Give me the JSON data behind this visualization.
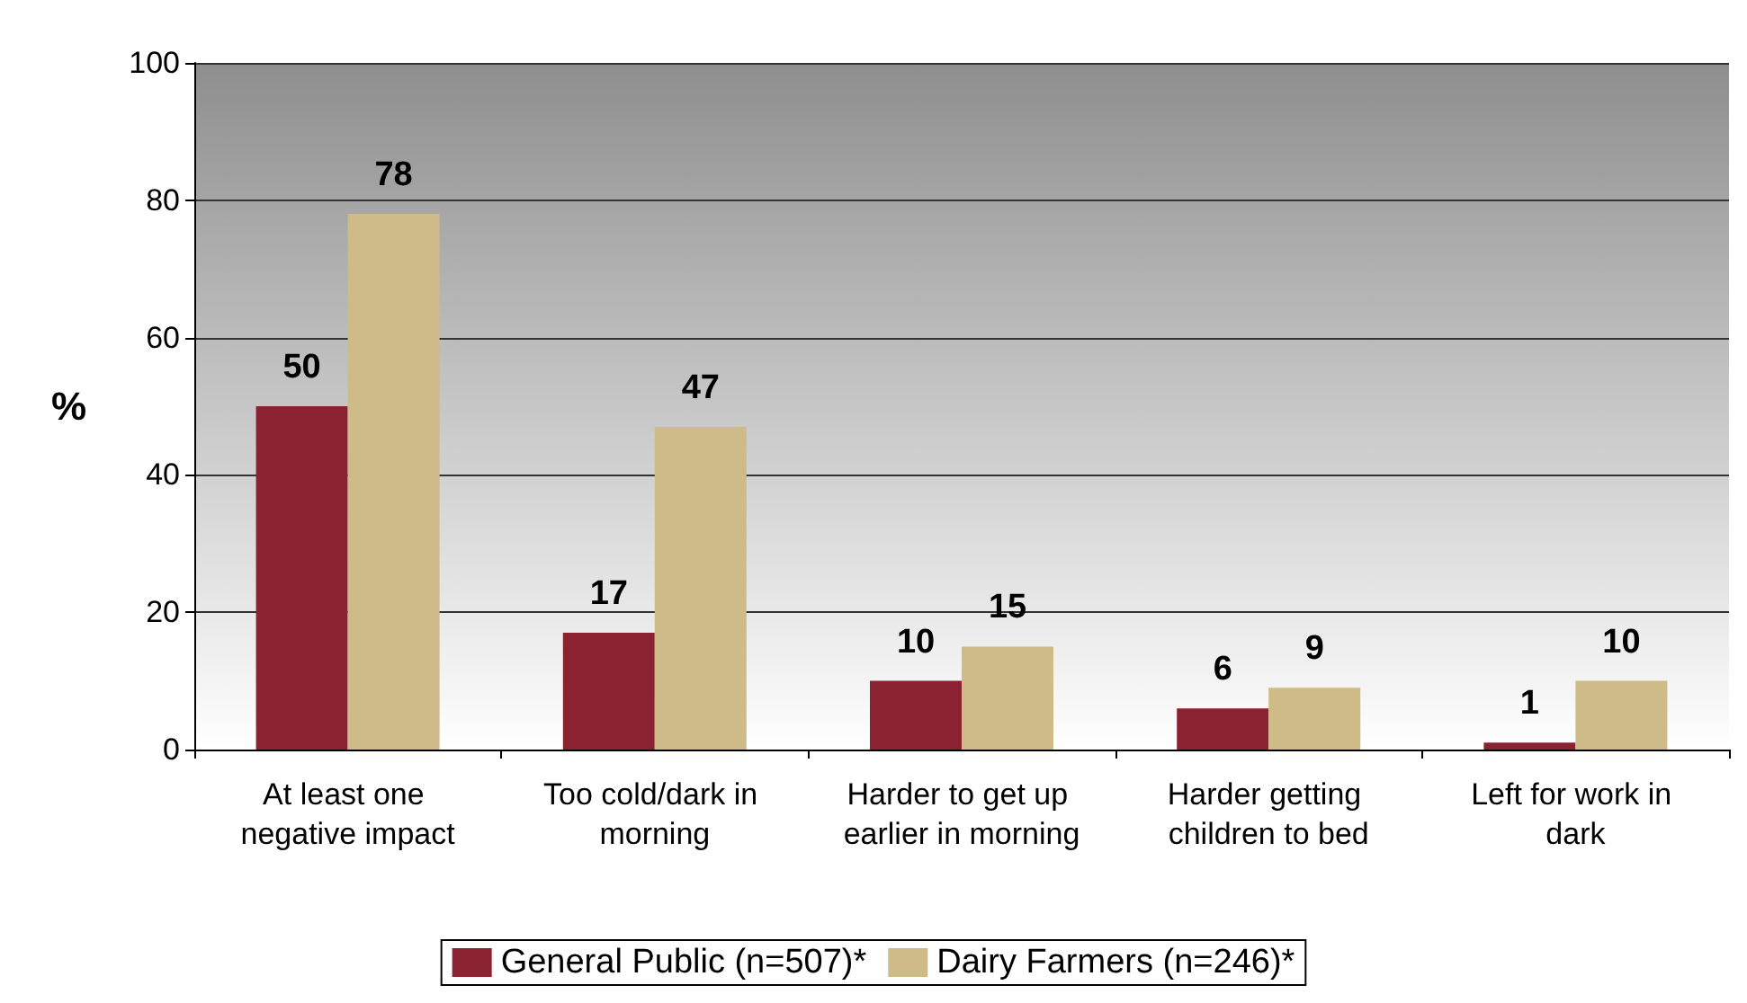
{
  "chart_data": {
    "type": "bar",
    "ylabel": "%",
    "categories": [
      "At least one negative impact",
      "Too cold/dark in morning",
      "Harder to get up earlier in morning",
      "Harder getting children to bed",
      "Left for work in dark"
    ],
    "series": [
      {
        "name": "General Public (n=507)*",
        "color": "#8b2232",
        "values": [
          50,
          17,
          10,
          6,
          1
        ]
      },
      {
        "name": "Dairy Farmers (n=246)*",
        "color": "#cfbb88",
        "values": [
          78,
          47,
          15,
          9,
          10
        ]
      }
    ],
    "ylim": [
      0,
      100
    ],
    "yticks": [
      0,
      20,
      40,
      60,
      80,
      100
    ],
    "grid": "y",
    "legend": "bottom",
    "data_labels": true
  }
}
